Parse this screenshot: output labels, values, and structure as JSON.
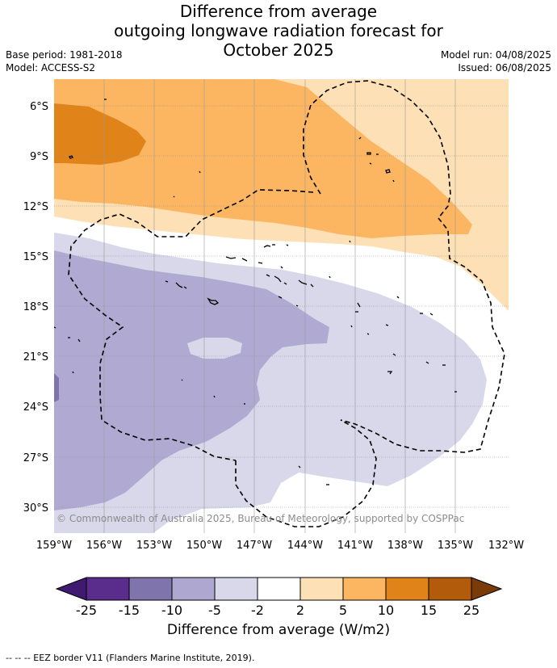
{
  "title": {
    "line1": "Difference from average",
    "line2": "outgoing longwave radiation forecast for",
    "line3": "October 2025"
  },
  "meta": {
    "base_period": "Base period: 1981-2018",
    "model": "Model: ACCESS-S2",
    "model_run": "Model run: 04/08/2025",
    "issued": "Issued: 06/08/2025"
  },
  "map": {
    "lat_labels": [
      "6°S",
      "9°S",
      "12°S",
      "15°S",
      "18°S",
      "21°S",
      "24°S",
      "27°S",
      "30°S"
    ],
    "lon_labels": [
      "159°W",
      "156°W",
      "153°W",
      "150°W",
      "147°W",
      "144°W",
      "141°W",
      "138°W",
      "135°W",
      "132°W"
    ],
    "copyright": "© Commonwealth of Australia 2025, Bureau of Meteorology, supported by COSPPac",
    "eez_border": "dashed"
  },
  "colorbar": {
    "ticks": [
      "-25",
      "-15",
      "-10",
      "-5",
      "-2",
      "2",
      "5",
      "10",
      "15",
      "25"
    ],
    "colors": [
      "#3f1a70",
      "#5a2d8c",
      "#7f74ac",
      "#aea7d0",
      "#d8d8ea",
      "#ffffff",
      "#fde0b5",
      "#fcb662",
      "#e0841a",
      "#b25b0a",
      "#7a3b08"
    ],
    "title": "Difference from average (W/m2)"
  },
  "footnote": "-- -- -- EEZ border V11 (Flanders Marine Institute, 2019)."
}
